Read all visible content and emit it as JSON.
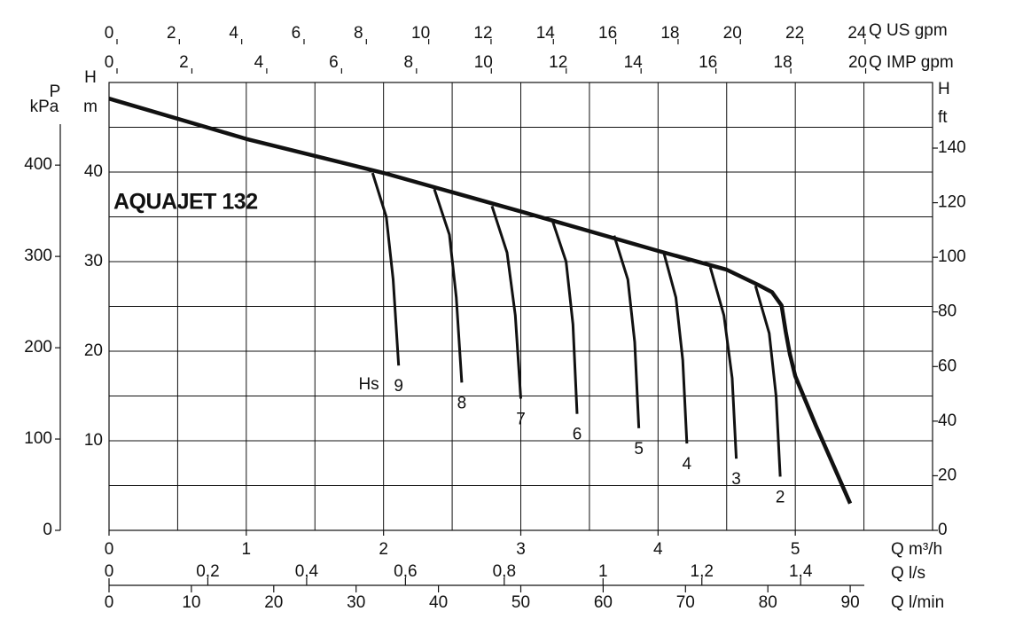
{
  "chart_data": {
    "type": "line",
    "title": "AQUAJET 132",
    "color": "#111111",
    "xlabel": "Q m³/h",
    "xlim": [
      0,
      6
    ],
    "xticks": [
      0,
      1,
      2,
      3,
      4,
      5
    ],
    "ylabel": "H",
    "yunit": "m",
    "ylim": [
      0,
      50
    ],
    "yticks": [
      10,
      20,
      30,
      40
    ],
    "grid_x": [
      0.5,
      1,
      1.5,
      2,
      2.5,
      3,
      3.5,
      4,
      4.5,
      5,
      5.5
    ],
    "grid_y": [
      5,
      10,
      15,
      20,
      25,
      30,
      35,
      40,
      45
    ],
    "p_label": "P",
    "p_unit": "kPa",
    "p_lim": [
      0,
      490.5
    ],
    "p_ticks": [
      0,
      100,
      200,
      300,
      400
    ],
    "ft_label": "H",
    "ft_unit": "ft",
    "ft_lim": [
      0,
      164.04
    ],
    "ft_ticks": [
      0,
      20,
      40,
      60,
      80,
      100,
      120,
      140
    ],
    "usgpm_label": "Q US gpm",
    "usgpm_lim": [
      0,
      26.42
    ],
    "usgpm_ticks": [
      0,
      2,
      4,
      6,
      8,
      10,
      12,
      14,
      16,
      18,
      20,
      22,
      24
    ],
    "impgpm_label": "Q IMP gpm",
    "impgpm_lim": [
      0,
      22.0
    ],
    "impgpm_ticks": [
      0,
      2,
      4,
      6,
      8,
      10,
      12,
      14,
      16,
      18,
      20
    ],
    "ls_label": "Q l/s",
    "ls_lim": [
      0,
      1.667
    ],
    "ls_ticks": [
      0,
      {
        "value": 0.2,
        "label": "0,2"
      },
      {
        "value": 0.4,
        "label": "0,4"
      },
      {
        "value": 0.6,
        "label": "0,6"
      },
      {
        "value": 0.8,
        "label": "0,8"
      },
      1,
      {
        "value": 1.2,
        "label": "1,2"
      },
      {
        "value": 1.4,
        "label": "1,4"
      }
    ],
    "lmin_label": "Q l/min",
    "lmin_lim": [
      0,
      100
    ],
    "lmin_ticks": [
      0,
      10,
      20,
      30,
      40,
      50,
      60,
      70,
      80,
      90
    ],
    "hs_label": "Hs",
    "curve": {
      "x": [
        0,
        1,
        2,
        3,
        4,
        4.5,
        4.73,
        4.83,
        4.9,
        4.93,
        4.96,
        5.0,
        5.15,
        5.4
      ],
      "y": [
        48.2,
        43.7,
        39.9,
        35.6,
        31.2,
        29.1,
        27.4,
        26.6,
        25.1,
        22.2,
        19.7,
        17.2,
        11.7,
        3.0
      ]
    },
    "hs_curves": [
      {
        "name": "9",
        "x": [
          1.92,
          2.02,
          2.07,
          2.11
        ],
        "y": [
          39.9,
          35,
          28,
          18.4
        ]
      },
      {
        "name": "8",
        "x": [
          2.37,
          2.48,
          2.53,
          2.57
        ],
        "y": [
          38.1,
          33,
          26,
          16.5
        ]
      },
      {
        "name": "7",
        "x": [
          2.79,
          2.9,
          2.96,
          3.0
        ],
        "y": [
          36.2,
          31,
          24,
          14.7
        ]
      },
      {
        "name": "6",
        "x": [
          3.23,
          3.33,
          3.38,
          3.41
        ],
        "y": [
          34.6,
          30,
          23,
          13.0
        ]
      },
      {
        "name": "5",
        "x": [
          3.68,
          3.78,
          3.83,
          3.86
        ],
        "y": [
          32.9,
          28,
          21,
          11.4
        ]
      },
      {
        "name": "4",
        "x": [
          4.04,
          4.13,
          4.18,
          4.21
        ],
        "y": [
          31.1,
          26,
          19,
          9.7
        ]
      },
      {
        "name": "3",
        "x": [
          4.38,
          4.48,
          4.54,
          4.57
        ],
        "y": [
          29.4,
          24,
          17,
          8.0
        ]
      },
      {
        "name": "2",
        "x": [
          4.71,
          4.81,
          4.86,
          4.89
        ],
        "y": [
          27.3,
          22,
          15,
          6.0
        ]
      }
    ]
  }
}
